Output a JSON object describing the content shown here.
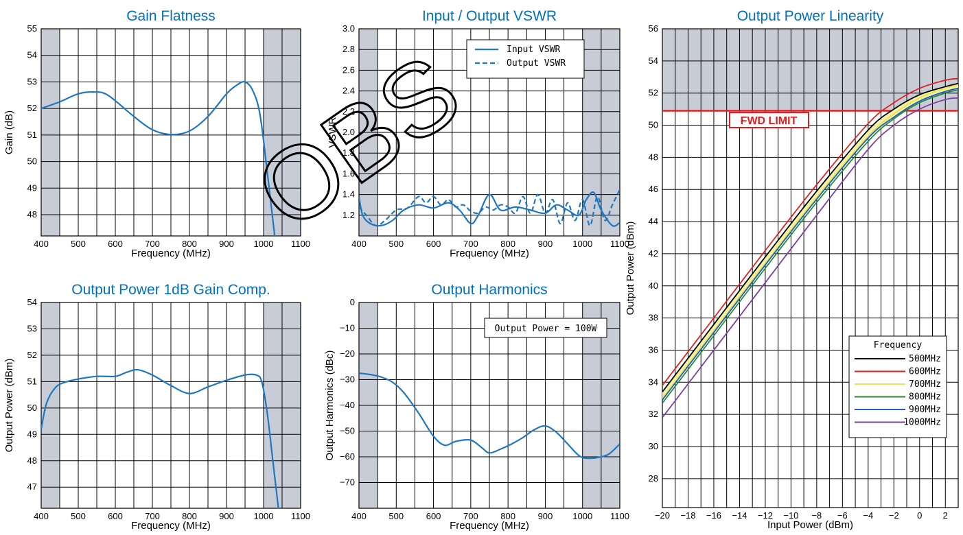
{
  "watermark": "OBS",
  "chart_data": [
    {
      "id": "gain-flatness",
      "type": "line",
      "title": "Gain Flatness",
      "xlabel": "Frequency (MHz)",
      "ylabel": "Gain (dB)",
      "xlim": [
        400,
        1100
      ],
      "ylim": [
        47.2,
        55
      ],
      "xticks": [
        400,
        500,
        600,
        700,
        800,
        900,
        1000,
        1100
      ],
      "yticks": [
        48,
        49,
        50,
        51,
        52,
        53,
        54,
        55
      ],
      "shaded_x": [
        [
          400,
          450
        ],
        [
          1000,
          1100
        ]
      ],
      "grid": true,
      "series": [
        {
          "color": "#1f77c0",
          "dash": false,
          "x": [
            400,
            450,
            500,
            540,
            580,
            650,
            700,
            750,
            800,
            850,
            900,
            930,
            950,
            970,
            990,
            1010,
            1030
          ],
          "y": [
            52.0,
            52.25,
            52.55,
            52.62,
            52.5,
            51.7,
            51.2,
            51.02,
            51.15,
            51.7,
            52.55,
            52.9,
            53.0,
            52.7,
            51.8,
            49.6,
            47.2
          ]
        }
      ]
    },
    {
      "id": "input-output-vswr",
      "type": "line",
      "title": "Input / Output VSWR",
      "xlabel": "Frequency (MHz)",
      "ylabel": "VSWR",
      "xlim": [
        400,
        1100
      ],
      "ylim": [
        1.0,
        3.0
      ],
      "xticks": [
        400,
        500,
        600,
        700,
        800,
        900,
        1000,
        1100
      ],
      "yticks": [
        1.2,
        1.4,
        1.6,
        1.8,
        2.0,
        2.2,
        2.4,
        2.6,
        2.8,
        3.0
      ],
      "ytick_labels": [
        "1.2",
        "1.4",
        "1.6",
        "1.8",
        "2.0",
        "2.2",
        "2.4",
        "2.6",
        "2.8",
        "3.0"
      ],
      "shaded_x": [
        [
          400,
          450
        ],
        [
          1000,
          1100
        ]
      ],
      "grid": true,
      "legend": {
        "position": "top-right",
        "entries": [
          "Input VSWR",
          "Output VSWR"
        ]
      },
      "series": [
        {
          "name": "Input VSWR",
          "color": "#1f77c0",
          "dash": false,
          "x": [
            400,
            410,
            430,
            460,
            490,
            520,
            560,
            600,
            640,
            670,
            700,
            720,
            750,
            780,
            820,
            860,
            900,
            930,
            960,
            990,
            1010,
            1030,
            1050,
            1080,
            1100
          ],
          "y": [
            1.38,
            1.2,
            1.12,
            1.1,
            1.15,
            1.25,
            1.3,
            1.27,
            1.32,
            1.25,
            1.12,
            1.2,
            1.4,
            1.25,
            1.28,
            1.25,
            1.22,
            1.3,
            1.25,
            1.2,
            1.35,
            1.42,
            1.25,
            1.1,
            1.13
          ]
        },
        {
          "name": "Output VSWR",
          "color": "#1f77c0",
          "dash": true,
          "x": [
            400,
            420,
            445,
            470,
            500,
            530,
            560,
            580,
            600,
            620,
            640,
            660,
            680,
            700,
            720,
            740,
            760,
            780,
            800,
            820,
            840,
            860,
            880,
            900,
            920,
            940,
            960,
            980,
            1000,
            1020,
            1040,
            1060,
            1080,
            1100
          ],
          "y": [
            1.28,
            1.2,
            1.1,
            1.15,
            1.25,
            1.27,
            1.38,
            1.32,
            1.38,
            1.3,
            1.35,
            1.28,
            1.3,
            1.24,
            1.22,
            1.28,
            1.25,
            1.3,
            1.28,
            1.22,
            1.38,
            1.22,
            1.4,
            1.22,
            1.35,
            1.12,
            1.32,
            1.15,
            1.35,
            1.1,
            1.38,
            1.15,
            1.3,
            1.45
          ]
        }
      ]
    },
    {
      "id": "output-power-linearity",
      "type": "line",
      "title": "Output Power Linearity",
      "xlabel": "Input Power (dBm)",
      "ylabel": "Output Power (dBm)",
      "xlim": [
        -20,
        3
      ],
      "ylim": [
        26.2,
        56
      ],
      "xticks": [
        -20,
        -18,
        -16,
        -14,
        -12,
        -10,
        -8,
        -6,
        -4,
        -2,
        0,
        2
      ],
      "yticks": [
        28,
        30,
        32,
        34,
        36,
        38,
        40,
        42,
        44,
        46,
        48,
        50,
        52,
        54,
        56
      ],
      "shaded_y": [
        [
          50.9,
          56
        ]
      ],
      "hline": {
        "y": 50.9,
        "color": "#e02020"
      },
      "annotation": "FWD LIMIT",
      "grid": true,
      "legend": {
        "position": "bottom-right",
        "title": "Frequency"
      },
      "series": [
        {
          "name": "500MHz",
          "color": "#000000",
          "x": [
            -20,
            -16,
            -12,
            -8,
            -4,
            -2,
            0,
            2,
            3
          ],
          "y": [
            33.4,
            37.6,
            41.8,
            45.9,
            49.7,
            51.0,
            51.9,
            52.4,
            52.6
          ]
        },
        {
          "name": "600MHz",
          "color": "#e02020",
          "x": [
            -20,
            -16,
            -12,
            -8,
            -4,
            -2,
            0,
            2,
            3
          ],
          "y": [
            33.8,
            38.0,
            42.2,
            46.3,
            50.1,
            51.4,
            52.3,
            52.8,
            52.9
          ]
        },
        {
          "name": "700MHz",
          "color": "#e8e060",
          "x": [
            -20,
            -16,
            -12,
            -8,
            -4,
            -2,
            0,
            2,
            3
          ],
          "y": [
            33.0,
            37.2,
            41.4,
            45.5,
            49.3,
            50.7,
            51.7,
            52.3,
            52.5
          ]
        },
        {
          "name": "800MHz",
          "color": "#2a8a3a",
          "x": [
            -20,
            -16,
            -12,
            -8,
            -4,
            -2,
            0,
            2,
            3
          ],
          "y": [
            32.7,
            36.9,
            41.1,
            45.2,
            49.0,
            50.4,
            51.4,
            52.0,
            52.2
          ]
        },
        {
          "name": "900MHz",
          "color": "#1f5fc0",
          "x": [
            -20,
            -16,
            -12,
            -8,
            -4,
            -2,
            0,
            2,
            3
          ],
          "y": [
            32.9,
            37.1,
            41.3,
            45.4,
            49.2,
            50.5,
            51.5,
            52.1,
            52.3
          ]
        },
        {
          "name": "1000MHz",
          "color": "#7b3fa0",
          "x": [
            -20,
            -16,
            -12,
            -8,
            -4,
            -2,
            0,
            2,
            3
          ],
          "y": [
            31.8,
            36.0,
            40.2,
            44.4,
            48.5,
            50.0,
            51.0,
            51.6,
            51.7
          ]
        }
      ]
    },
    {
      "id": "output-power-1db",
      "type": "line",
      "title": "Output Power 1dB Gain Comp.",
      "xlabel": "Frequency (MHz)",
      "ylabel": "Output Power (dBm)",
      "xlim": [
        400,
        1100
      ],
      "ylim": [
        46.2,
        54
      ],
      "xticks": [
        400,
        500,
        600,
        700,
        800,
        900,
        1000,
        1100
      ],
      "yticks": [
        47,
        48,
        49,
        50,
        51,
        52,
        53,
        54
      ],
      "shaded_x": [
        [
          400,
          450
        ],
        [
          1000,
          1100
        ]
      ],
      "grid": true,
      "series": [
        {
          "color": "#1f77c0",
          "dash": false,
          "x": [
            400,
            415,
            440,
            470,
            500,
            550,
            600,
            630,
            660,
            700,
            750,
            800,
            850,
            900,
            950,
            980,
            995,
            1010,
            1025,
            1040
          ],
          "y": [
            49.2,
            50.2,
            50.8,
            51.0,
            51.1,
            51.2,
            51.2,
            51.35,
            51.45,
            51.25,
            50.85,
            50.55,
            50.8,
            51.05,
            51.25,
            51.25,
            51.0,
            49.8,
            48.0,
            46.2
          ]
        }
      ]
    },
    {
      "id": "output-harmonics",
      "type": "line",
      "title": "Output Harmonics",
      "xlabel": "Frequency (MHz)",
      "ylabel": "Output Harmonics (dBc)",
      "xlim": [
        400,
        1100
      ],
      "ylim": [
        -80,
        0
      ],
      "xticks": [
        400,
        500,
        600,
        700,
        800,
        900,
        1000,
        1100
      ],
      "yticks": [
        0,
        -10,
        -20,
        -30,
        -40,
        -50,
        -60,
        -70
      ],
      "ytick_labels": [
        "0",
        "−10",
        "−20",
        "−30",
        "−40",
        "−50",
        "−60",
        "−70"
      ],
      "shaded_x": [
        [
          400,
          450
        ],
        [
          1000,
          1100
        ]
      ],
      "grid": true,
      "annotation": "Output Power = 100W",
      "series": [
        {
          "color": "#1f77c0",
          "dash": false,
          "x": [
            400,
            430,
            460,
            490,
            520,
            560,
            600,
            630,
            660,
            700,
            730,
            750,
            780,
            810,
            840,
            870,
            900,
            930,
            960,
            990,
            1010,
            1040,
            1070,
            1100
          ],
          "y": [
            -27.5,
            -28,
            -29,
            -31,
            -35,
            -43,
            -52,
            -55.5,
            -54,
            -53.5,
            -56.5,
            -58.5,
            -57,
            -55,
            -52.5,
            -49.5,
            -48,
            -50.5,
            -55,
            -59.5,
            -60.5,
            -60.3,
            -59,
            -55
          ]
        }
      ]
    }
  ]
}
